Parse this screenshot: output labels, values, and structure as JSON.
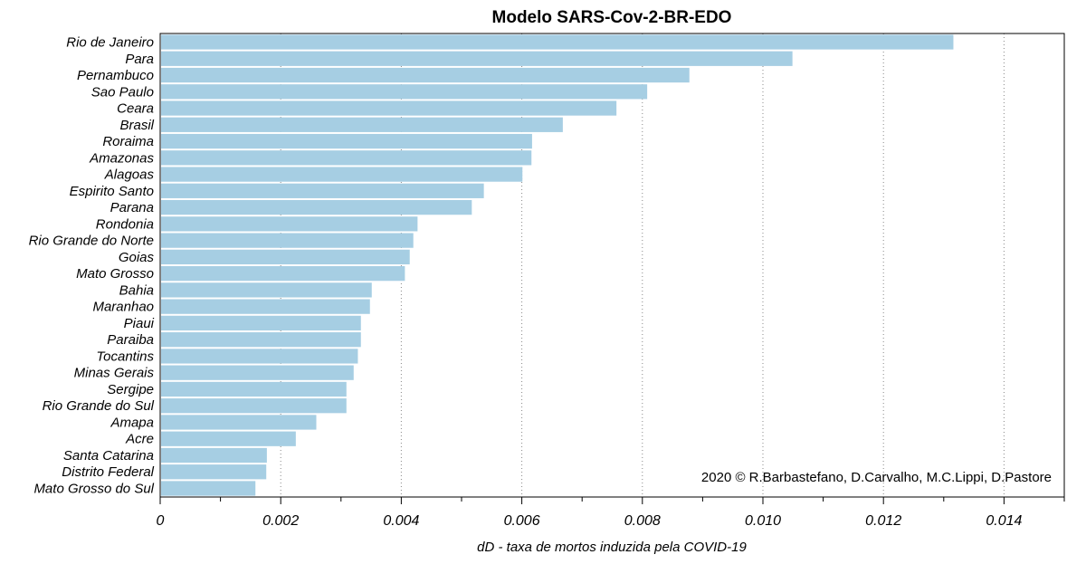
{
  "chart_data": {
    "type": "bar",
    "orientation": "horizontal",
    "title": "Modelo SARS-Cov-2-BR-EDO",
    "xlabel": "dD - taxa de mortos induzida pela COVID-19",
    "ylabel": "",
    "credit": "2020 © R.Barbastefano, D.Carvalho, M.C.Lippi, D.Pastore",
    "xlim": [
      0,
      0.015
    ],
    "xticks": [
      0,
      0.002,
      0.004,
      0.006,
      0.008,
      0.01,
      0.012,
      0.014
    ],
    "xtick_labels": [
      "0",
      "0.002",
      "0.004",
      "0.006",
      "0.008",
      "0.010",
      "0.012",
      "0.014"
    ],
    "grid": "vertical dotted",
    "bar_color": "#a6cee3",
    "categories": [
      "Rio de Janeiro",
      "Para",
      "Pernambuco",
      "Sao Paulo",
      "Ceara",
      "Brasil",
      "Roraima",
      "Amazonas",
      "Alagoas",
      "Espirito Santo",
      "Parana",
      "Rondonia",
      "Rio Grande do Norte",
      "Goias",
      "Mato Grosso",
      "Bahia",
      "Maranhao",
      "Piaui",
      "Paraiba",
      "Tocantins",
      "Minas Gerais",
      "Sergipe",
      "Rio Grande do Sul",
      "Amapa",
      "Acre",
      "Santa Catarina",
      "Distrito Federal",
      "Mato Grosso do Sul"
    ],
    "values": [
      0.01316,
      0.01049,
      0.00878,
      0.00808,
      0.00757,
      0.00668,
      0.00617,
      0.00616,
      0.00601,
      0.00537,
      0.00517,
      0.00427,
      0.0042,
      0.00414,
      0.00406,
      0.00351,
      0.00348,
      0.00333,
      0.00333,
      0.00328,
      0.00321,
      0.00309,
      0.00309,
      0.00259,
      0.00225,
      0.00177,
      0.00176,
      0.00158
    ]
  }
}
